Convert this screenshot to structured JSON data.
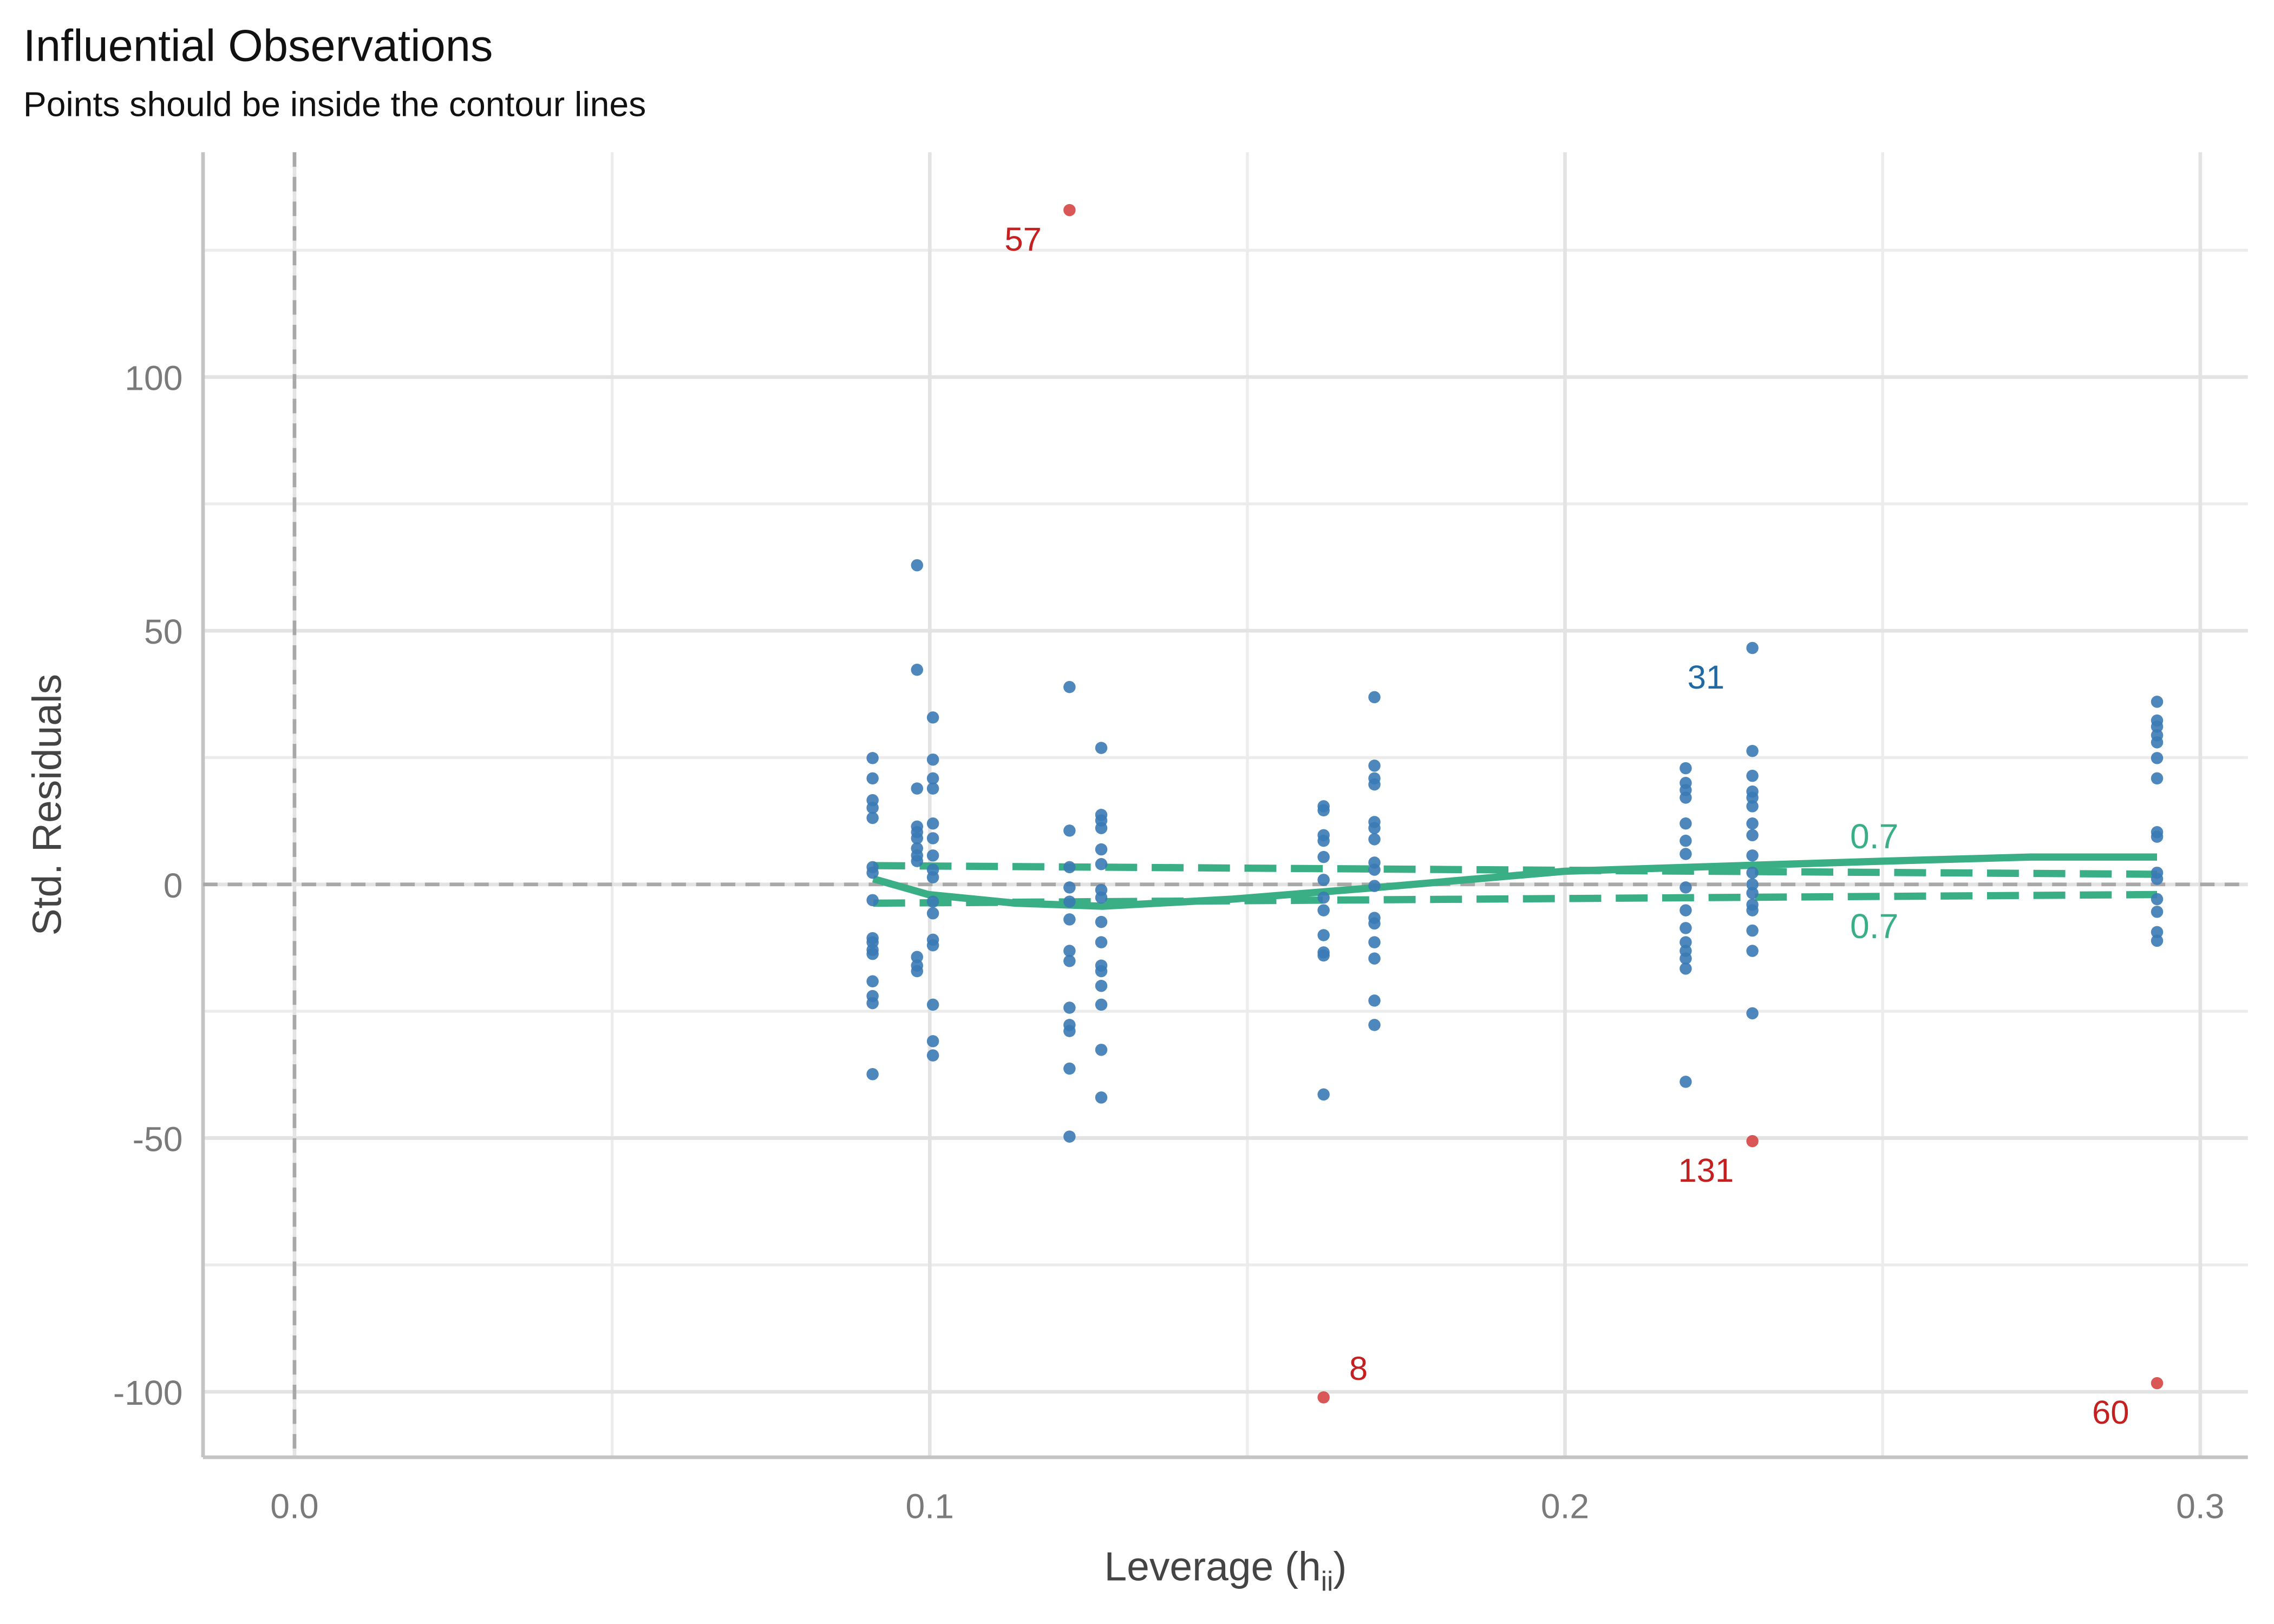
{
  "chart_data": {
    "type": "scatter",
    "title": "Influential Observations",
    "subtitle": "Points should be inside the contour lines",
    "ylabel": "Std. Residuals",
    "xlabel": {
      "text": "Leverage (h",
      "subscript": "ii",
      "suffix": ")"
    },
    "xlim": [
      -0.0144,
      0.3075
    ],
    "ylim": [
      -112.9,
      144.3
    ],
    "xticks": [
      {
        "value": 0,
        "label": "0.0"
      },
      0.1,
      0.2,
      0.3
    ],
    "yticks": [
      -100,
      -50,
      0,
      50,
      100
    ],
    "xminor": [
      0.05,
      0.15,
      0.25
    ],
    "yminor": [
      -75,
      -25,
      25,
      75,
      125
    ],
    "grid": true,
    "hline": 0,
    "vline": 0,
    "series": [
      {
        "color": "#3a7ab5",
        "x": 0.091,
        "values": [
          24.9,
          20.9,
          16.6,
          15.1,
          13.1,
          3.4,
          2.3,
          -3.1,
          -10.6,
          -11.4,
          -12.9,
          -13.7,
          -19.1,
          -22,
          -23.4,
          -37.4
        ]
      },
      {
        "color": "#3a7ab5",
        "x": 0.098,
        "values": [
          62.9,
          42.3,
          18.9,
          11.4,
          10.3,
          9.1,
          7.1,
          5.7,
          4.6,
          -14.3,
          -16,
          -17.1
        ]
      },
      {
        "color": "#3a7ab5",
        "x": 0.1005,
        "values": [
          32.9,
          24.6,
          20.9,
          18.9,
          12,
          9.1,
          5.7,
          2.9,
          1.4,
          -3.4,
          -5.7,
          -10.9,
          -12,
          -23.7,
          -30.9,
          -33.7
        ]
      },
      {
        "color": "#3a7ab5",
        "x": 0.122,
        "values": [
          38.9,
          10.6,
          3.4,
          -0.6,
          -3.4,
          -6.9,
          -13.1,
          -15.1,
          -24.3,
          -27.7,
          -28.9,
          -36.3,
          -49.7
        ]
      },
      {
        "color": "#3a7ab5",
        "x": 0.127,
        "values": [
          26.9,
          13.7,
          12.6,
          11.1,
          6.9,
          4,
          -1.1,
          -2.6,
          -7.4,
          -11.4,
          -16,
          -17.1,
          -20,
          -23.7,
          -32.6,
          -42
        ]
      },
      {
        "color": "#3a7ab5",
        "x": 0.162,
        "values": [
          15.4,
          14.6,
          9.7,
          8.6,
          5.4,
          0.9,
          -2.6,
          -5.1,
          -10,
          -13.4,
          -14,
          -41.4
        ]
      },
      {
        "color": "#3a7ab5",
        "x": 0.17,
        "values": [
          36.9,
          23.4,
          20.9,
          19.7,
          12.3,
          11.1,
          8.9,
          4.3,
          2.9,
          -0.3,
          -6.6,
          -7.7,
          -11.4,
          -14.6,
          -22.9,
          -27.7
        ]
      },
      {
        "color": "#3a7ab5",
        "x": 0.219,
        "values": [
          22.9,
          20,
          18.6,
          17.1,
          12,
          8.6,
          6,
          -0.6,
          -5.1,
          -8.6,
          -11.4,
          -13.1,
          -14.6,
          -16.6,
          -38.9
        ]
      },
      {
        "color": "#3a7ab5",
        "x": 0.2295,
        "values": [
          26.3,
          21.4,
          18.3,
          17.1,
          15.4,
          12,
          9.7,
          5.7,
          2.3,
          0,
          -1.7,
          -4,
          -5.1,
          -9.1,
          -13.1,
          -25.4
        ]
      },
      {
        "color": "#3a7ab5",
        "x": 0.2932,
        "values": [
          36,
          32.3,
          31.1,
          29.4,
          28,
          24.9,
          20.9,
          10.3,
          9.4,
          2.3,
          1.1,
          -2.9,
          -5.4,
          -9.4,
          -11.1
        ]
      },
      {
        "color": "#3a7ab5",
        "label_color": "#1f6aa5",
        "x": [
          0.2295
        ],
        "values": [
          46.6
        ],
        "labels": [
          "31"
        ]
      },
      {
        "color": "#d64545",
        "label_color": "#c42020",
        "x": [
          0.122,
          0.162,
          0.2295,
          0.2932
        ],
        "values": [
          132.9,
          -101.1,
          -50.6,
          -98.3
        ],
        "labels": [
          "57",
          "8",
          "131",
          "60"
        ]
      }
    ],
    "smooth": {
      "color": "#3aaf85",
      "x": [
        0.0911,
        0.0998,
        0.1135,
        0.1272,
        0.1477,
        0.1705,
        0.2,
        0.2276,
        0.2505,
        0.2733,
        0.2932
      ],
      "values": [
        1.1,
        -2,
        -3.7,
        -4.3,
        -2.9,
        -0.6,
        2.6,
        3.7,
        4.6,
        5.4,
        5.4
      ]
    },
    "contours": [
      {
        "label": "0.7",
        "color": "#3aaf85",
        "x": [
          0.0911,
          0.2932
        ],
        "values": [
          3.7,
          2
        ]
      },
      {
        "label": "0.7",
        "color": "#3aaf85",
        "x": [
          0.0911,
          0.2932
        ],
        "values": [
          -3.7,
          -2
        ]
      }
    ]
  }
}
